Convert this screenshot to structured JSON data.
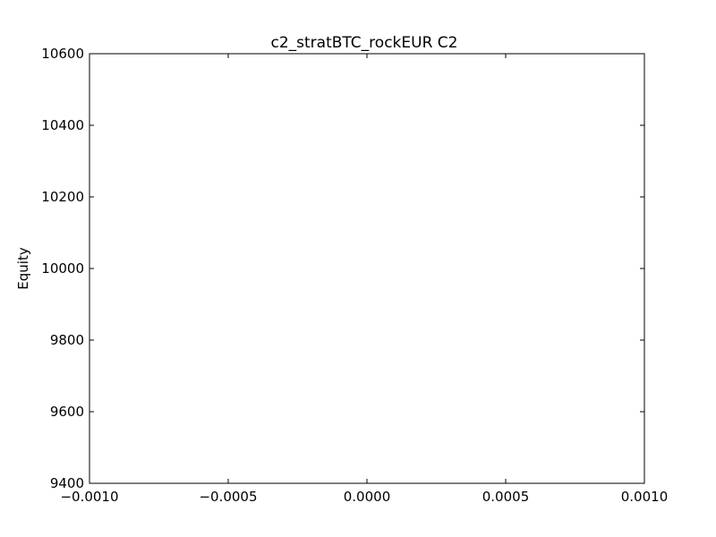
{
  "chart_data": {
    "type": "line",
    "title": "c2_stratBTC_rockEUR C2",
    "xlabel": "",
    "ylabel": "Equity",
    "xlim": [
      -0.001,
      0.001
    ],
    "ylim": [
      9400,
      10600
    ],
    "x_ticks": [
      -0.001,
      -0.0005,
      0.0,
      0.0005,
      0.001
    ],
    "x_tick_labels": [
      "−0.0010",
      "−0.0005",
      "0.0000",
      "0.0005",
      "0.0010"
    ],
    "y_ticks": [
      9400,
      9600,
      9800,
      10000,
      10200,
      10400,
      10600
    ],
    "y_tick_labels": [
      "9400",
      "9600",
      "9800",
      "10000",
      "10200",
      "10400",
      "10600"
    ],
    "grid": false,
    "legend": "none",
    "series": [],
    "colors": {
      "axes": "#000000",
      "background": "#ffffff"
    }
  }
}
